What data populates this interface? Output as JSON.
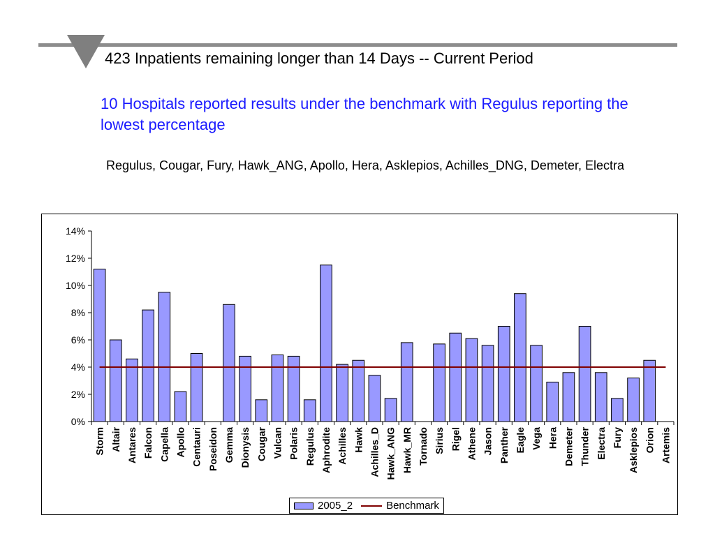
{
  "slide": {
    "title": "423 Inpatients remaining longer than 14 Days -- Current Period",
    "subtitle": "10 Hospitals reported results under the benchmark with Regulus reporting the lowest percentage",
    "hospital_list": "Regulus, Cougar, Fury, Hawk_ANG, Apollo, Hera, Asklepios, Achilles_DNG, Demeter, Electra"
  },
  "colors": {
    "bar_fill": "#9999ff",
    "bar_stroke": "#000000",
    "benchmark_line": "#800000",
    "title_text": "#000000",
    "subtitle_text": "#1a1aff",
    "rule": "#8c8c8c"
  },
  "chart_data": {
    "type": "bar",
    "categories": [
      "Storm",
      "Altair",
      "Antares",
      "Falcon",
      "Capella",
      "Apollo",
      "Centauri",
      "Poseidon",
      "Gemma",
      "Dionysis",
      "Cougar",
      "Vulcan",
      "Polaris",
      "Regulus",
      "Aphrodite",
      "Achilles",
      "Hawk",
      "Achilles_D",
      "Hawk_ANG",
      "Hawk_MR",
      "Tornado",
      "Sirius",
      "Rigel",
      "Athene",
      "Jason",
      "Panther",
      "Eagle",
      "Vega",
      "Hera",
      "Demeter",
      "Thunder",
      "Electra",
      "Fury",
      "Asklepios",
      "Orion",
      "Artemis"
    ],
    "series": [
      {
        "name": "2005_2",
        "type": "bar",
        "values": [
          0.112,
          0.06,
          0.046,
          0.082,
          0.095,
          0.022,
          0.05,
          0.0,
          0.086,
          0.048,
          0.016,
          0.049,
          0.048,
          0.016,
          0.115,
          0.042,
          0.045,
          0.034,
          0.017,
          0.058,
          0.0,
          0.057,
          0.065,
          0.061,
          0.056,
          0.07,
          0.094,
          0.056,
          0.029,
          0.036,
          0.07,
          0.036,
          0.017,
          0.032,
          0.045,
          0.0
        ]
      },
      {
        "name": "Benchmark",
        "type": "line",
        "value": 0.04
      }
    ],
    "ylim": [
      0,
      0.14
    ],
    "yticks": [
      0,
      0.02,
      0.04,
      0.06,
      0.08,
      0.1,
      0.12,
      0.14
    ],
    "ytick_labels": [
      "0%",
      "2%",
      "4%",
      "6%",
      "8%",
      "10%",
      "12%",
      "14%"
    ],
    "grid": false,
    "legend_position": "bottom-center"
  }
}
